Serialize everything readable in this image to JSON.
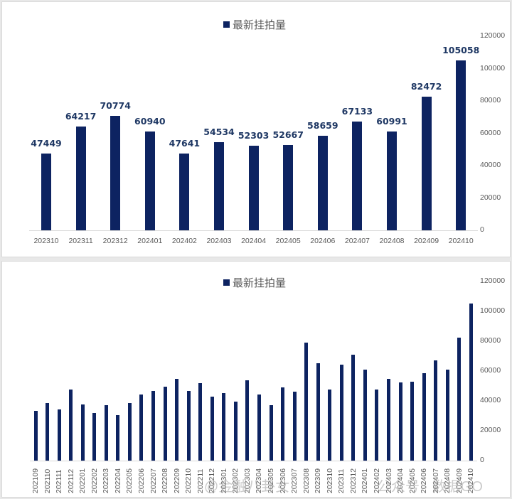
{
  "chart_data": [
    {
      "type": "bar",
      "title": "",
      "legend": [
        "最新挂拍量"
      ],
      "legend_position": "top",
      "xlabel": "",
      "ylabel": "",
      "ylim": [
        0,
        120000
      ],
      "y_ticks": [
        "0",
        "20000",
        "40000",
        "60000",
        "80000",
        "100000",
        "120000"
      ],
      "y_axis_side": "right",
      "grid": false,
      "data_labels": true,
      "categories": [
        "202310",
        "202311",
        "202312",
        "202401",
        "202402",
        "202403",
        "202404",
        "202405",
        "202406",
        "202407",
        "202408",
        "202409",
        "202410"
      ],
      "series": [
        {
          "name": "最新挂拍量",
          "color": "#0d2361",
          "values": [
            47449,
            64217,
            70774,
            60940,
            47641,
            54534,
            52303,
            52667,
            58659,
            67133,
            60991,
            82472,
            105058
          ]
        }
      ]
    },
    {
      "type": "bar",
      "title": "",
      "legend": [
        "最新挂拍量"
      ],
      "legend_position": "top",
      "xlabel": "",
      "ylabel": "",
      "ylim": [
        0,
        120000
      ],
      "y_ticks": [
        "0",
        "20000",
        "40000",
        "60000",
        "80000",
        "100000",
        "120000"
      ],
      "y_axis_side": "right",
      "grid": false,
      "data_labels": false,
      "categories": [
        "202109",
        "202110",
        "202111",
        "202112",
        "202201",
        "202202",
        "202203",
        "202204",
        "202205",
        "202206",
        "202207",
        "202208",
        "202209",
        "202210",
        "202211",
        "202212",
        "202301",
        "202302",
        "202303",
        "202304",
        "202305",
        "202306",
        "202307",
        "202308",
        "202309",
        "202310",
        "202311",
        "202312",
        "202401",
        "202402",
        "202403",
        "202404",
        "202405",
        "202406",
        "202407",
        "202408",
        "202409",
        "202410"
      ],
      "series": [
        {
          "name": "最新挂拍量",
          "color": "#0d2361",
          "values": [
            33300,
            38600,
            34300,
            47600,
            37600,
            31900,
            37100,
            30500,
            38600,
            44300,
            46700,
            49500,
            54900,
            46700,
            52100,
            42900,
            45300,
            39500,
            53900,
            44300,
            37100,
            49000,
            46200,
            79000,
            65200,
            47449,
            64217,
            70774,
            60940,
            47641,
            54534,
            52303,
            52667,
            58659,
            67133,
            60991,
            82472,
            105058
          ]
        }
      ]
    }
  ],
  "top_chart": {
    "legend_label": "最新挂拍量"
  },
  "bottom_chart": {
    "legend_label": "最新挂拍量"
  },
  "watermarks": {
    "left": "@金融八卦女",
    "right": "公众号 · 数据GO"
  },
  "colors": {
    "bar": "#0d2361",
    "label": "#1f3864",
    "axis_text": "#595959"
  }
}
